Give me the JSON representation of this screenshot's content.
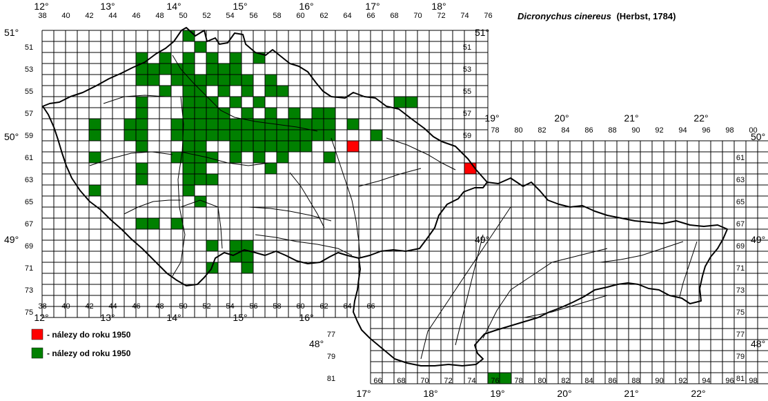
{
  "title": {
    "species": "Dicronychus cinereus",
    "author": "(Herbst, 1784)"
  },
  "legend": [
    {
      "label": "- nálezy do roku 1950",
      "color": "#ff0000"
    },
    {
      "label": "- nálezy od roku 1950",
      "color": "#008000"
    }
  ],
  "colors": {
    "grid": "#000000",
    "border": "#000000",
    "rivers": "#000000",
    "old_records": "#ff0000",
    "new_records": "#008000"
  },
  "west_grid": {
    "columns": [
      "38",
      "40",
      "42",
      "44",
      "46",
      "48",
      "50",
      "52",
      "54",
      "56",
      "58",
      "60",
      "62",
      "64",
      "66",
      "68",
      "70",
      "72",
      "74",
      "76"
    ],
    "row_labels": [
      "51",
      "53",
      "55",
      "57",
      "59",
      "61",
      "63",
      "65",
      "67",
      "69",
      "71",
      "73",
      "75"
    ],
    "lon_top": [
      "12°",
      "13°",
      "14°",
      "15°",
      "16°",
      "17°",
      "18°"
    ],
    "lon_bottom": [
      "12°",
      "13°",
      "14°",
      "15°",
      "16°"
    ],
    "lat": [
      "51°",
      "50°",
      "49°"
    ]
  },
  "east_grid": {
    "columns": [
      "78",
      "80",
      "82",
      "84",
      "86",
      "88",
      "90",
      "92",
      "94",
      "96",
      "98",
      "00"
    ],
    "bottom_columns": [
      "66",
      "68",
      "70",
      "72",
      "74",
      "76",
      "78",
      "80",
      "82",
      "84",
      "86",
      "88",
      "90",
      "92",
      "94",
      "96",
      "98",
      "00"
    ],
    "row_labels": [
      "61",
      "63",
      "65",
      "67",
      "69",
      "71",
      "73",
      "75",
      "77",
      "79",
      "81"
    ],
    "left_row_labels": [
      "77",
      "79",
      "81"
    ],
    "lon_top": [
      "19°",
      "20°",
      "21°",
      "22°"
    ],
    "lon_bottom": [
      "17°",
      "18°",
      "19°",
      "20°",
      "21°",
      "22°"
    ],
    "lat": [
      "50°",
      "49°",
      "48°"
    ]
  },
  "records": {
    "before_1950": [
      "6460",
      "7462"
    ],
    "since_1950": [
      "5151",
      "5050",
      "5454",
      "4652",
      "4852",
      "5052",
      "5252",
      "5452",
      "5652",
      "4653",
      "4753",
      "4853",
      "4953",
      "5053",
      "5253",
      "5353",
      "5453",
      "4654",
      "4754",
      "4954",
      "5054",
      "5154",
      "5254",
      "5354",
      "5454",
      "5554",
      "5754",
      "4855",
      "5055",
      "5155",
      "5355",
      "5555",
      "5755",
      "5855",
      "4656",
      "5056",
      "5156",
      "5256",
      "5456",
      "5656",
      "6856",
      "6956",
      "4657",
      "5057",
      "5157",
      "5257",
      "5357",
      "5557",
      "5757",
      "5957",
      "6157",
      "6257",
      "4258",
      "4558",
      "4658",
      "4958",
      "5058",
      "5158",
      "5258",
      "5358",
      "5458",
      "5558",
      "5658",
      "5758",
      "5858",
      "5958",
      "6058",
      "6158",
      "6258",
      "6458",
      "4259",
      "4559",
      "4659",
      "4959",
      "5059",
      "5159",
      "5259",
      "5359",
      "5459",
      "5559",
      "5659",
      "5759",
      "5859",
      "5959",
      "6059",
      "6159",
      "6259",
      "6659",
      "4660",
      "5060",
      "5160",
      "5460",
      "5560",
      "5660",
      "5760",
      "5860",
      "5960",
      "6060",
      "4261",
      "4961",
      "5061",
      "5161",
      "5261",
      "5461",
      "5661",
      "5861",
      "6261",
      "4662",
      "5062",
      "5162",
      "5762",
      "4663",
      "5063",
      "5163",
      "5263",
      "4264",
      "5064",
      "5165",
      "4667",
      "4767",
      "4967",
      "5269",
      "5469",
      "5569",
      "5470",
      "5570",
      "5271",
      "5571",
      "7681",
      "7781"
    ]
  }
}
